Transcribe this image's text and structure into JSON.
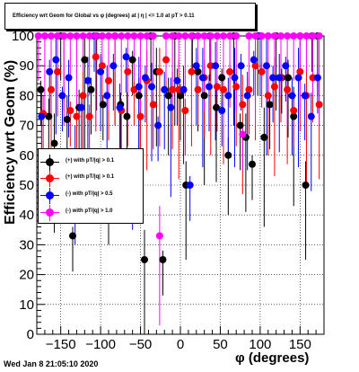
{
  "title": "Efficiency wrt Geom for Global vs φ (degrees) at | η | <= 1.0 at pT > 0.11",
  "xlabel": "φ (degrees)",
  "ylabel": "Efficiency wrt Geom (%)",
  "datestamp": "Wed Jan  8 21:05:10 2020",
  "legend": [
    {
      "label": "(+) with pT/|q| > 0.1",
      "color": "#000000"
    },
    {
      "label": "(+) with pT/|q| > 0.1",
      "color": "#ff0000"
    },
    {
      "label": "(-) with pT/|q| > 0.5",
      "color": "#0000ff"
    },
    {
      "label": "(-) with pT/|q| > 1.0",
      "color": "#ff00ff"
    }
  ],
  "chart_data": {
    "type": "scatter",
    "title": "Efficiency wrt Geom for Global vs φ (degrees) at | η | <= 1.0 at pT > 0.11",
    "xlabel": "φ (degrees)",
    "ylabel": "Efficiency wrt Geom (%)",
    "xlim": [
      -180,
      180
    ],
    "ylim": [
      0,
      100
    ],
    "xticks": [
      -150,
      -100,
      -50,
      0,
      50,
      100,
      150
    ],
    "yticks": [
      0,
      10,
      20,
      30,
      40,
      50,
      60,
      70,
      80,
      90,
      100
    ],
    "grid": true,
    "legend_position": "left-middle",
    "series": [
      {
        "name": "(+) with pT/|q| > 0.1",
        "color": "#000000",
        "x": [
          -175,
          -165,
          -158,
          -150,
          -142,
          -135,
          -127,
          -120,
          -112,
          -105,
          -97,
          -90,
          -82,
          -75,
          -67,
          -60,
          -52,
          -45,
          -37,
          -30,
          -22,
          -15,
          -7,
          0,
          7,
          15,
          22,
          30,
          37,
          45,
          52,
          60,
          67,
          75,
          82,
          90,
          97,
          105,
          112,
          120,
          127,
          135,
          142,
          150,
          157,
          165,
          172
        ],
        "y": [
          82,
          73,
          64,
          100,
          72,
          33,
          76,
          92,
          82,
          100,
          77,
          50,
          100,
          77,
          73,
          92,
          80,
          25,
          100,
          88,
          25,
          80,
          100,
          80,
          50,
          100,
          88,
          80,
          100,
          76,
          86,
          60,
          100,
          70,
          66,
          57,
          100,
          66,
          77,
          100,
          86,
          86,
          73,
          100,
          50,
          100,
          100
        ]
      },
      {
        "name": "(+) with pT/|q| > 0.1",
        "color": "#ff0000",
        "x": [
          -172,
          -162,
          -154,
          -146,
          -138,
          -130,
          -122,
          -114,
          -106,
          -98,
          -90,
          -82,
          -74,
          -66,
          -58,
          -50,
          -42,
          -34,
          -26,
          -18,
          -10,
          -2,
          6,
          14,
          22,
          30,
          38,
          46,
          54,
          62,
          70,
          78,
          86,
          94,
          102,
          110,
          118,
          126,
          134,
          142,
          150,
          158,
          166,
          174
        ],
        "y": [
          74,
          82,
          88,
          100,
          75,
          73,
          80,
          73,
          93,
          90,
          85,
          100,
          75,
          88,
          82,
          73,
          85,
          77,
          88,
          92,
          82,
          82,
          75,
          88,
          82,
          86,
          90,
          83,
          82,
          88,
          83,
          77,
          82,
          90,
          88,
          80,
          83,
          86,
          82,
          75,
          88,
          80,
          86,
          77
        ]
      },
      {
        "name": "(-) with pT/|q| > 0.5",
        "color": "#0000ff",
        "x": [
          -174,
          -164,
          -156,
          -148,
          -140,
          -132,
          -124,
          -116,
          -108,
          -100,
          -92,
          -84,
          -76,
          -68,
          -60,
          -52,
          -44,
          -36,
          -28,
          -20,
          -12,
          -4,
          4,
          12,
          20,
          28,
          36,
          44,
          52,
          60,
          68,
          76,
          84,
          92,
          100,
          108,
          116,
          124,
          132,
          140,
          148,
          156,
          164,
          172
        ],
        "y": [
          73,
          88,
          92,
          80,
          86,
          60,
          76,
          85,
          100,
          88,
          80,
          90,
          76,
          93,
          55,
          83,
          86,
          83,
          70,
          82,
          76,
          85,
          82,
          50,
          90,
          86,
          83,
          90,
          75,
          80,
          86,
          90,
          80,
          92,
          100,
          90,
          86,
          86,
          90,
          80,
          86,
          80,
          73,
          86
        ]
      },
      {
        "name": "(-) with pT/|q| > 1.0",
        "color": "#ff00ff",
        "x": [
          -178,
          -170,
          -162,
          -154,
          -146,
          -138,
          -130,
          -122,
          -114,
          -106,
          -98,
          -90,
          -82,
          -74,
          -66,
          -58,
          -50,
          -42,
          -34,
          -26,
          -18,
          -10,
          -2,
          6,
          14,
          22,
          30,
          38,
          46,
          54,
          62,
          70,
          78,
          86,
          94,
          102,
          110,
          118,
          126,
          134,
          142,
          150,
          158,
          166,
          174
        ],
        "y": [
          100,
          100,
          100,
          100,
          100,
          100,
          100,
          100,
          100,
          100,
          100,
          100,
          100,
          100,
          100,
          100,
          100,
          100,
          100,
          33,
          100,
          100,
          100,
          100,
          100,
          100,
          100,
          100,
          100,
          100,
          100,
          100,
          67,
          100,
          100,
          100,
          100,
          100,
          100,
          100,
          100,
          100,
          100,
          100,
          100
        ]
      }
    ]
  }
}
